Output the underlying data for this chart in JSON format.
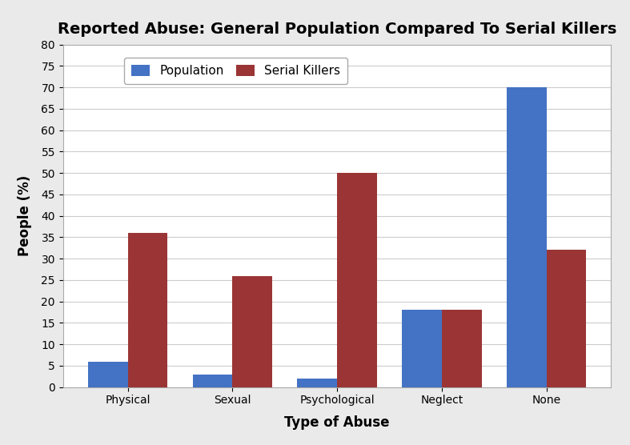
{
  "title": "Reported Abuse: General Population Compared To Serial Killers",
  "xlabel": "Type of Abuse",
  "ylabel": "People (%)",
  "categories": [
    "Physical",
    "Sexual",
    "Psychological",
    "Neglect",
    "None"
  ],
  "population": [
    6,
    3,
    2,
    18,
    70
  ],
  "serial_killers": [
    36,
    26,
    50,
    18,
    32
  ],
  "population_color": "#4472C4",
  "serial_killers_color": "#9B3535",
  "ylim": [
    0,
    80
  ],
  "yticks": [
    0,
    5,
    10,
    15,
    20,
    25,
    30,
    35,
    40,
    45,
    50,
    55,
    60,
    65,
    70,
    75,
    80
  ],
  "legend_labels": [
    "Population",
    "Serial Killers"
  ],
  "background_color": "#EAEAEA",
  "plot_bg_color": "#FFFFFF",
  "bar_width": 0.38,
  "title_fontsize": 14,
  "label_fontsize": 12,
  "tick_fontsize": 10,
  "legend_fontsize": 11
}
